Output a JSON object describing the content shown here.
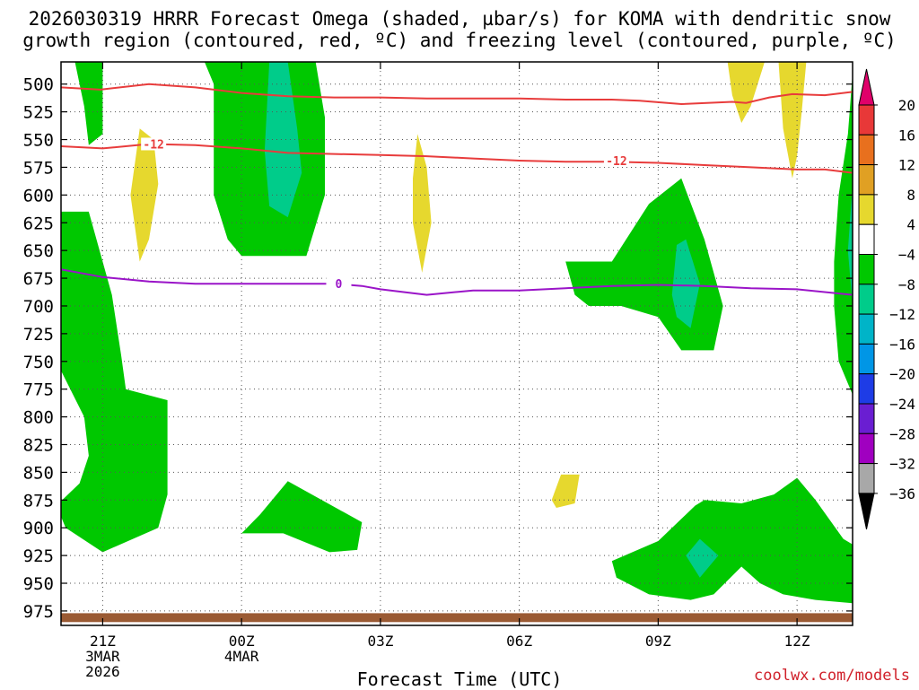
{
  "chart_data": {
    "type": "heatmap",
    "title_line1": "2026030319 HRRR Forecast Omega (shaded, µbar/s) for KOMA with dendritic snow",
    "title_line2": "growth region (contoured, red, ºC) and freezing level (contoured, purple, ºC)",
    "xlabel": "Forecast Time (UTC)",
    "ylabel": "",
    "x_range_hours": [
      -0.9,
      16.2
    ],
    "y_range_hpa": [
      480,
      988
    ],
    "y_ticks": [
      500,
      525,
      550,
      575,
      600,
      625,
      650,
      675,
      700,
      725,
      750,
      775,
      800,
      825,
      850,
      875,
      900,
      925,
      950,
      975
    ],
    "x_ticks": [
      {
        "hour": 0,
        "label": "21Z",
        "sub1": "3MAR",
        "sub2": "2026"
      },
      {
        "hour": 3,
        "label": "00Z",
        "sub1": "4MAR",
        "sub2": ""
      },
      {
        "hour": 6,
        "label": "03Z",
        "sub1": "",
        "sub2": ""
      },
      {
        "hour": 9,
        "label": "06Z",
        "sub1": "",
        "sub2": ""
      },
      {
        "hour": 12,
        "label": "09Z",
        "sub1": "",
        "sub2": ""
      },
      {
        "hour": 15,
        "label": "12Z",
        "sub1": "",
        "sub2": ""
      }
    ],
    "colorbar": {
      "labels": [
        "20",
        "16",
        "12",
        "8",
        "4",
        "−4",
        "−8",
        "−12",
        "−16",
        "−20",
        "−24",
        "−28",
        "−32",
        "−36"
      ],
      "colors": [
        "#e0006a",
        "#e83838",
        "#e8701e",
        "#e0a023",
        "#e6d82e",
        "#ffffff",
        "#00c800",
        "#00cc8a",
        "#00b4c8",
        "#0096e6",
        "#1e3ce6",
        "#6a1ed2",
        "#a000c0",
        "#a8a8a8",
        "#000000"
      ]
    },
    "omega_regions": [
      {
        "level": "-4",
        "color": "#00c800",
        "points": [
          [
            -0.6,
            480
          ],
          [
            0.0,
            480
          ],
          [
            0.0,
            545
          ],
          [
            -0.3,
            555
          ],
          [
            -0.4,
            520
          ]
        ]
      },
      {
        "level": "-4",
        "color": "#00c800",
        "points": [
          [
            2.2,
            480
          ],
          [
            4.6,
            480
          ],
          [
            4.8,
            530
          ],
          [
            4.8,
            600
          ],
          [
            4.4,
            655
          ],
          [
            3.0,
            655
          ],
          [
            2.7,
            640
          ],
          [
            2.4,
            600
          ],
          [
            2.4,
            500
          ]
        ]
      },
      {
        "level": "-8",
        "color": "#00cc8a",
        "points": [
          [
            3.6,
            480
          ],
          [
            4.0,
            480
          ],
          [
            4.2,
            540
          ],
          [
            4.3,
            580
          ],
          [
            4.0,
            620
          ],
          [
            3.6,
            610
          ],
          [
            3.5,
            560
          ]
        ]
      },
      {
        "level": "-4",
        "color": "#00c800",
        "points": [
          [
            -1.0,
            615
          ],
          [
            -0.3,
            615
          ],
          [
            0.2,
            690
          ],
          [
            0.4,
            745
          ],
          [
            0.5,
            775
          ],
          [
            1.4,
            785
          ],
          [
            1.4,
            870
          ],
          [
            1.2,
            900
          ],
          [
            0.0,
            922
          ],
          [
            -0.8,
            900
          ],
          [
            -1.0,
            880
          ],
          [
            -0.5,
            860
          ],
          [
            -0.3,
            835
          ],
          [
            -0.4,
            800
          ],
          [
            -1.0,
            750
          ]
        ]
      },
      {
        "level": "-4",
        "color": "#00c800",
        "points": [
          [
            3.4,
            888
          ],
          [
            4.0,
            858
          ],
          [
            5.6,
            895
          ],
          [
            5.5,
            920
          ],
          [
            4.9,
            922
          ],
          [
            3.9,
            905
          ],
          [
            3.0,
            905
          ]
        ]
      },
      {
        "level": "-4",
        "color": "#00c800",
        "points": [
          [
            10.0,
            660
          ],
          [
            11.0,
            660
          ],
          [
            11.8,
            608
          ],
          [
            12.5,
            585
          ],
          [
            13.0,
            640
          ],
          [
            13.4,
            700
          ],
          [
            13.2,
            740
          ],
          [
            12.5,
            740
          ],
          [
            12.0,
            710
          ],
          [
            11.2,
            700
          ],
          [
            10.5,
            700
          ],
          [
            10.2,
            690
          ]
        ]
      },
      {
        "level": "-8",
        "color": "#00cc8a",
        "points": [
          [
            12.4,
            645
          ],
          [
            12.6,
            640
          ],
          [
            12.9,
            680
          ],
          [
            12.7,
            720
          ],
          [
            12.4,
            710
          ],
          [
            12.3,
            690
          ]
        ]
      },
      {
        "level": "-4",
        "color": "#00c800",
        "points": [
          [
            11.0,
            930
          ],
          [
            12.0,
            912
          ],
          [
            12.8,
            880
          ],
          [
            13.0,
            875
          ],
          [
            13.8,
            878
          ],
          [
            14.5,
            870
          ],
          [
            15.0,
            855
          ],
          [
            15.4,
            875
          ],
          [
            16.0,
            910
          ],
          [
            16.2,
            915
          ],
          [
            16.2,
            968
          ],
          [
            15.4,
            965
          ],
          [
            14.7,
            960
          ],
          [
            14.2,
            950
          ],
          [
            13.8,
            935
          ],
          [
            13.2,
            960
          ],
          [
            12.7,
            965
          ],
          [
            11.8,
            960
          ],
          [
            11.1,
            945
          ]
        ]
      },
      {
        "level": "-8",
        "color": "#00cc8a",
        "points": [
          [
            12.6,
            925
          ],
          [
            12.9,
            910
          ],
          [
            13.3,
            925
          ],
          [
            12.9,
            945
          ]
        ]
      },
      {
        "level": "-4",
        "color": "#00c800",
        "points": [
          [
            16.2,
            490
          ],
          [
            16.2,
            780
          ],
          [
            15.9,
            750
          ],
          [
            15.8,
            700
          ],
          [
            15.8,
            660
          ],
          [
            15.9,
            600
          ],
          [
            16.1,
            545
          ]
        ]
      },
      {
        "level": "-8",
        "color": "#00cc8a",
        "points": [
          [
            16.2,
            590
          ],
          [
            16.2,
            700
          ],
          [
            16.1,
            650
          ]
        ]
      },
      {
        "level": "4",
        "color": "#e6d82e",
        "points": [
          [
            0.8,
            540
          ],
          [
            1.1,
            550
          ],
          [
            1.2,
            590
          ],
          [
            1.0,
            640
          ],
          [
            0.8,
            660
          ],
          [
            0.6,
            600
          ]
        ]
      },
      {
        "level": "4",
        "color": "#e6d82e",
        "points": [
          [
            6.8,
            545
          ],
          [
            7.0,
            575
          ],
          [
            7.1,
            625
          ],
          [
            6.9,
            670
          ],
          [
            6.7,
            625
          ],
          [
            6.7,
            585
          ]
        ]
      },
      {
        "level": "4",
        "color": "#e6d82e",
        "points": [
          [
            9.9,
            852
          ],
          [
            10.3,
            852
          ],
          [
            10.2,
            878
          ],
          [
            9.8,
            882
          ],
          [
            9.7,
            875
          ]
        ]
      },
      {
        "level": "4",
        "color": "#e6d82e",
        "points": [
          [
            13.5,
            480
          ],
          [
            14.3,
            480
          ],
          [
            14.0,
            520
          ],
          [
            13.8,
            535
          ],
          [
            13.6,
            510
          ]
        ]
      },
      {
        "level": "4",
        "color": "#e6d82e",
        "points": [
          [
            14.6,
            480
          ],
          [
            15.2,
            480
          ],
          [
            15.1,
            525
          ],
          [
            15.0,
            565
          ],
          [
            14.9,
            585
          ],
          [
            14.7,
            540
          ]
        ]
      }
    ],
    "series": [
      {
        "name": "-12 °C dendritic (upper)",
        "color": "#e83c3c",
        "label": "",
        "x": [
          -0.9,
          -0.05,
          1.0,
          2.0,
          3.0,
          4.0,
          5.0,
          6.0,
          7.0,
          8.0,
          9.0,
          10.0,
          11.0,
          11.6,
          12.5,
          13.6,
          13.9,
          14.4,
          14.9,
          15.6,
          16.2
        ],
        "y": [
          503,
          505,
          500,
          503,
          508,
          511,
          512,
          512,
          513,
          513,
          513,
          514,
          514,
          515,
          518,
          516,
          517,
          512,
          509,
          510,
          507
        ]
      },
      {
        "name": "-12 °C dendritic (lower)",
        "color": "#e83c3c",
        "label": "-12",
        "x": [
          -0.9,
          0.0,
          1.0,
          2.0,
          3.0,
          4.0,
          5.0,
          6.0,
          7.0,
          8.0,
          9.0,
          10.0,
          11.0,
          12.0,
          13.0,
          14.0,
          15.0,
          15.6,
          16.2
        ],
        "y": [
          556,
          558,
          554,
          555,
          558,
          562,
          563,
          564,
          565,
          567,
          569,
          570,
          570,
          571,
          573,
          575,
          577,
          577,
          580
        ]
      },
      {
        "name": "0 °C freezing level",
        "color": "#9a14c8",
        "label": "0",
        "x": [
          -0.9,
          0.0,
          1.0,
          2.0,
          3.0,
          4.0,
          5.0,
          5.6,
          6.0,
          7.0,
          8.0,
          9.0,
          10.0,
          11.0,
          12.0,
          13.0,
          14.0,
          15.0,
          16.2
        ],
        "y": [
          667,
          674,
          678,
          680,
          680,
          680,
          680,
          682,
          685,
          690,
          686,
          686,
          684,
          682,
          681,
          682,
          684,
          685,
          690
        ]
      }
    ],
    "terrain": {
      "color": "#9a5a33",
      "top_hpa": 977,
      "bottom_hpa": 985
    }
  },
  "credit": "coolwx.com/models"
}
